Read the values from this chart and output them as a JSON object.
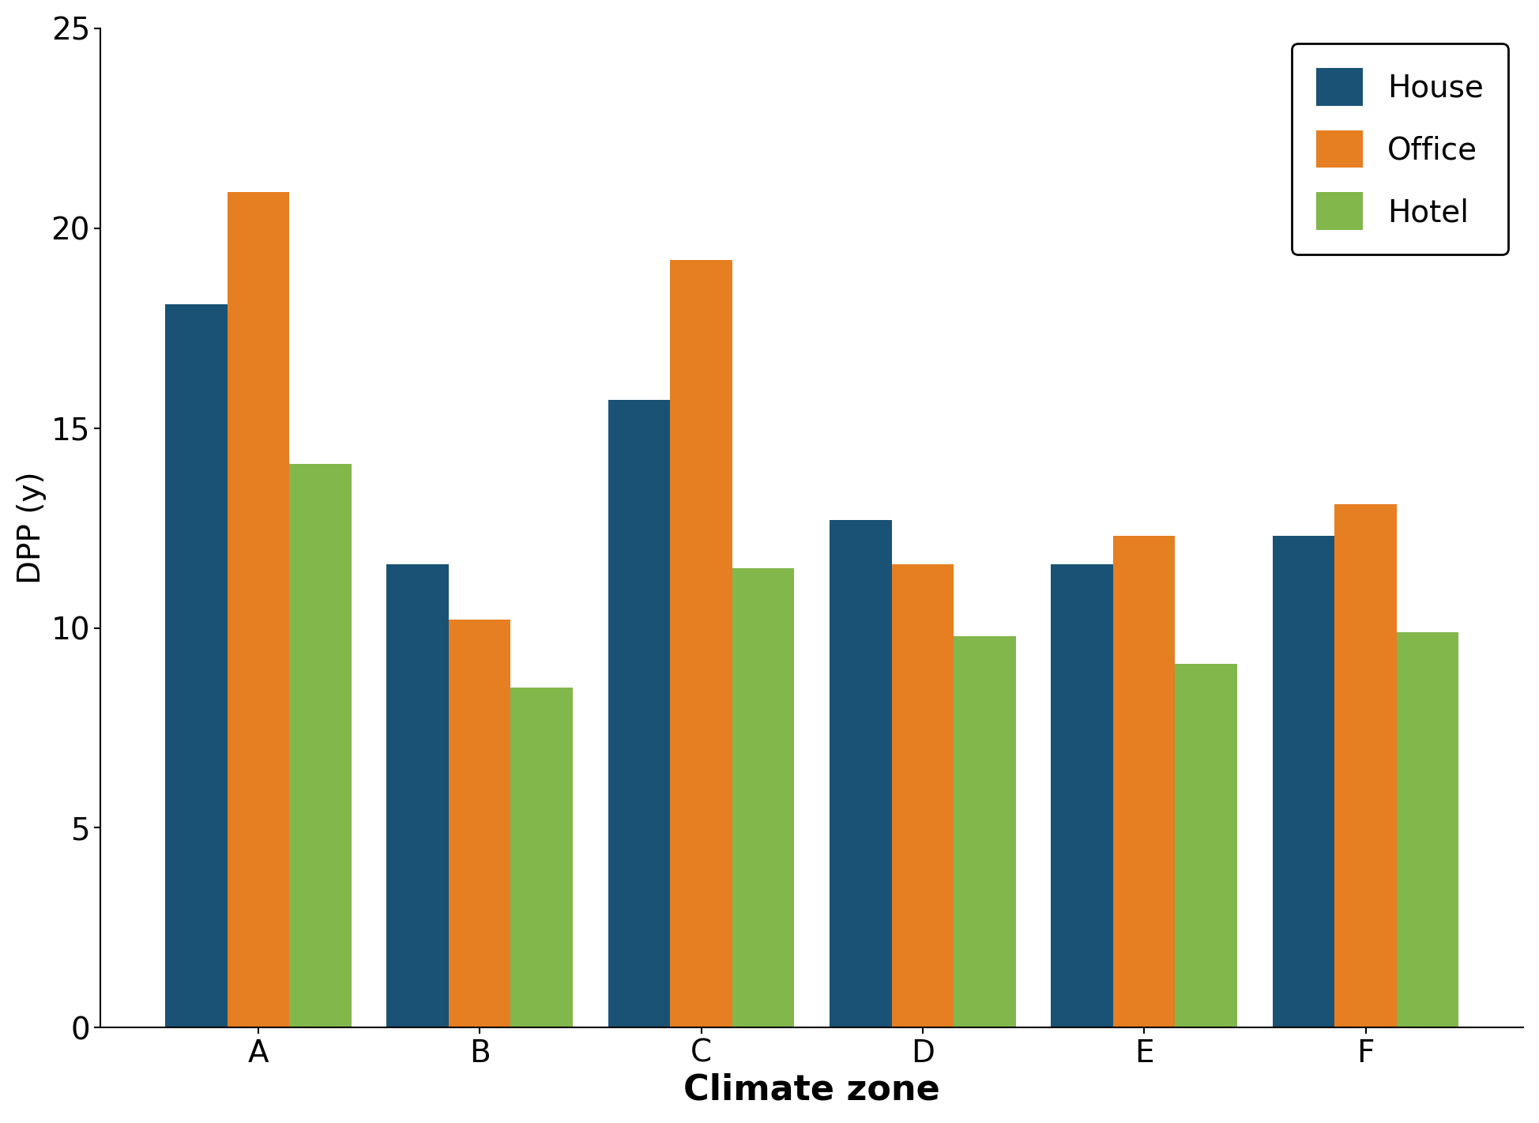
{
  "categories": [
    "A",
    "B",
    "C",
    "D",
    "E",
    "F"
  ],
  "series": {
    "House": [
      18.1,
      11.6,
      15.7,
      12.7,
      11.6,
      12.3
    ],
    "Office": [
      20.9,
      10.2,
      19.2,
      11.6,
      12.3,
      13.1
    ],
    "Hotel": [
      14.1,
      8.5,
      11.5,
      9.8,
      9.1,
      9.9
    ]
  },
  "colors": {
    "House": "#1a5276",
    "Office": "#e67e22",
    "Hotel": "#82b74b"
  },
  "xlabel": "Climate zone",
  "ylabel": "DPP (y)",
  "ylim": [
    0,
    25
  ],
  "yticks": [
    0,
    5,
    10,
    15,
    20,
    25
  ],
  "bar_width": 0.28,
  "xlabel_fontsize": 32,
  "ylabel_fontsize": 28,
  "tick_fontsize": 28,
  "legend_fontsize": 28,
  "xlabel_fontweight": "bold",
  "background_color": "#ffffff"
}
